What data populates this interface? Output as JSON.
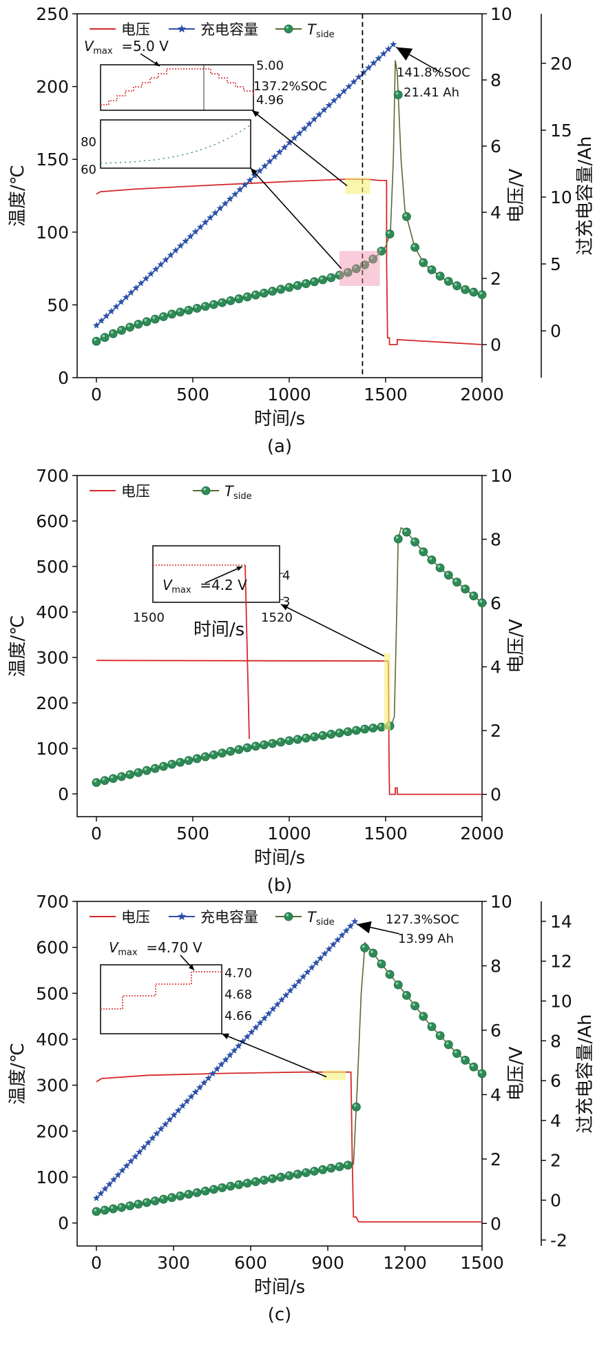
{
  "chart_data": [
    {
      "panel": "(a)",
      "type": "line",
      "xlabel": "时间/s",
      "ylabel": "温度/℃",
      "y2label": "电压/V",
      "y3label": "过充电容量/Ah",
      "xlim": [
        -100,
        2000
      ],
      "ylim": [
        0,
        250
      ],
      "y2lim": [
        -1,
        10
      ],
      "y3lim": [
        -3.5,
        23.7
      ],
      "xticks": [
        "0",
        "500",
        "1000",
        "1500",
        "2000"
      ],
      "yticks": [
        "0",
        "50",
        "100",
        "150",
        "200",
        "250"
      ],
      "y2ticks": [
        "0",
        "2",
        "4",
        "6",
        "8",
        "10"
      ],
      "y3ticks": [
        "0",
        "5",
        "10",
        "15",
        "20"
      ],
      "legend": {
        "voltage": "电压",
        "capacity": "充电容量",
        "temp_main": "T",
        "temp_sub": "side"
      },
      "series": [
        {
          "name": "电压",
          "axis": "y2",
          "color": "#d62728",
          "x": [
            0,
            20,
            200,
            600,
            1000,
            1300,
            1400,
            1470,
            1505,
            1505,
            1510,
            1520,
            1520,
            1560,
            1560,
            2000
          ],
          "y": [
            4.55,
            4.62,
            4.7,
            4.82,
            4.93,
            5.0,
            5.0,
            4.96,
            4.96,
            2.5,
            0.2,
            0.2,
            0.0,
            0.0,
            0.15,
            0.0
          ]
        },
        {
          "name": "充电容量",
          "axis": "y3",
          "color": "#2b4fa8",
          "x": [
            0,
            1540
          ],
          "y": [
            0.4,
            21.41
          ]
        },
        {
          "name": "T_side",
          "axis": "y",
          "color": "#2e8b57",
          "x": [
            0,
            100,
            200,
            300,
            400,
            500,
            600,
            700,
            800,
            900,
            1000,
            1100,
            1200,
            1300,
            1400,
            1450,
            1500,
            1525,
            1540,
            1550,
            1560,
            1580,
            1600,
            1650,
            1700,
            1800,
            1900,
            2000
          ],
          "y": [
            25,
            31,
            36,
            40,
            44,
            47,
            50,
            53,
            56,
            59,
            62,
            65,
            68,
            72,
            78,
            83,
            90,
            100,
            150,
            218,
            210,
            150,
            115,
            90,
            78,
            68,
            61,
            57
          ]
        }
      ],
      "annotations": {
        "end_soc": "141.8%SOC",
        "end_ah": "21.41 Ah",
        "vmax_prefix": "V",
        "vmax_sub": "max",
        "vmax_value": "=5.0 V",
        "inset_v_ticks": [
          "5.00",
          "4.96"
        ],
        "inset_v_note": "137.2%SOC",
        "inset_t_ticks": [
          "80",
          "60"
        ],
        "marker_line_x": 1380
      },
      "caption": "(a)"
    },
    {
      "panel": "(b)",
      "type": "line",
      "xlabel": "时间/s",
      "ylabel": "温度/℃",
      "y2label": "电压/V",
      "xlim": [
        -100,
        2000
      ],
      "ylim": [
        -50,
        700
      ],
      "y2lim": [
        -0.7,
        10
      ],
      "xticks": [
        "0",
        "500",
        "1000",
        "1500",
        "2000"
      ],
      "yticks": [
        "0",
        "100",
        "200",
        "300",
        "400",
        "500",
        "600",
        "700"
      ],
      "y2ticks": [
        "0",
        "2",
        "4",
        "6",
        "8",
        "10"
      ],
      "legend": {
        "voltage": "电压",
        "temp_main": "T",
        "temp_sub": "side"
      },
      "series": [
        {
          "name": "电压",
          "axis": "y2",
          "color": "#d62728",
          "x": [
            0,
            1510,
            1514,
            1518,
            1520,
            1550,
            1550,
            1560,
            1560,
            2000
          ],
          "y": [
            4.2,
            4.18,
            4.15,
            1.0,
            0.0,
            0.0,
            0.2,
            0.2,
            0.0,
            0.0
          ]
        },
        {
          "name": "T_side",
          "axis": "y",
          "color": "#2e8b57",
          "x": [
            0,
            200,
            400,
            600,
            800,
            1000,
            1200,
            1400,
            1500,
            1530,
            1545,
            1555,
            1565,
            1580,
            1600,
            1700,
            1800,
            1900,
            2000
          ],
          "y": [
            25,
            45,
            66,
            85,
            103,
            117,
            130,
            143,
            148,
            150,
            170,
            350,
            560,
            585,
            580,
            530,
            490,
            455,
            420
          ]
        }
      ],
      "annotations": {
        "vmax_prefix": "V",
        "vmax_sub": "max",
        "vmax_value": "=4.2 V",
        "inset_x_ticks": [
          "1500",
          "1520"
        ],
        "inset_x_label": "时间/s",
        "inset_v_ticks": [
          "4",
          "3"
        ]
      },
      "caption": "(b)"
    },
    {
      "panel": "(c)",
      "type": "line",
      "xlabel": "时间/s",
      "ylabel": "温度/℃",
      "y2label": "电压/V",
      "y3label": "过充电容量/Ah",
      "xlim": [
        -75,
        1500
      ],
      "ylim": [
        -50,
        700
      ],
      "y2lim": [
        -0.7,
        10
      ],
      "y3lim": [
        -2.3,
        15
      ],
      "xticks": [
        "0",
        "300",
        "600",
        "900",
        "1200",
        "1500"
      ],
      "yticks": [
        "0",
        "100",
        "200",
        "300",
        "400",
        "500",
        "600",
        "700"
      ],
      "y2ticks": [
        "0",
        "2",
        "4",
        "6",
        "8",
        "10"
      ],
      "y3ticks": [
        "-2",
        "0",
        "2",
        "4",
        "6",
        "8",
        "10",
        "12",
        "14"
      ],
      "legend": {
        "voltage": "电压",
        "capacity": "充电容量",
        "temp_main": "T",
        "temp_sub": "side"
      },
      "series": [
        {
          "name": "电压",
          "axis": "y2",
          "color": "#d62728",
          "x": [
            0,
            20,
            200,
            500,
            800,
            990,
            995,
            1000,
            1010,
            1020,
            1500
          ],
          "y": [
            4.4,
            4.5,
            4.6,
            4.66,
            4.7,
            4.7,
            2.0,
            0.2,
            0.2,
            0.05,
            0.05
          ]
        },
        {
          "name": "充电容量",
          "axis": "y3",
          "color": "#2b4fa8",
          "x": [
            0,
            1005
          ],
          "y": [
            0.1,
            13.99
          ]
        },
        {
          "name": "T_side",
          "axis": "y",
          "color": "#2e8b57",
          "x": [
            0,
            100,
            200,
            300,
            400,
            500,
            600,
            700,
            800,
            900,
            990,
            1000,
            1015,
            1030,
            1045,
            1100,
            1200,
            1300,
            1400,
            1500
          ],
          "y": [
            25,
            34,
            45,
            56,
            67,
            78,
            88,
            98,
            108,
            118,
            127,
            128,
            300,
            500,
            610,
            570,
            500,
            430,
            370,
            325
          ]
        }
      ],
      "annotations": {
        "end_soc": "127.3%SOC",
        "end_ah": "13.99 Ah",
        "vmax_prefix": "V",
        "vmax_sub": "max",
        "vmax_value": "=4.70 V",
        "inset_v_ticks": [
          "4.70",
          "4.68",
          "4.66"
        ]
      },
      "caption": "(c)"
    }
  ]
}
